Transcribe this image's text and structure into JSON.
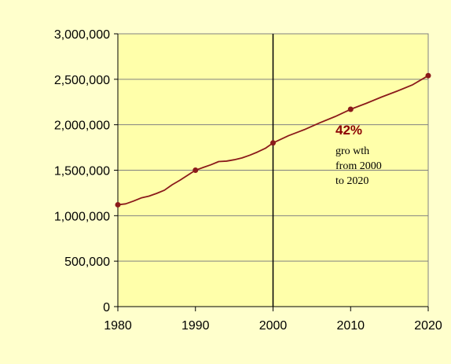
{
  "chart_data": {
    "type": "line",
    "title": "",
    "xlabel": "",
    "ylabel": "",
    "xlim": [
      1980,
      2020
    ],
    "ylim": [
      0,
      3000000
    ],
    "x_ticks": [
      "1980",
      "1990",
      "2000",
      "2010",
      "2020"
    ],
    "y_ticks": [
      "0",
      "500,000",
      "1,000,000",
      "1,500,000",
      "2,000,000",
      "2,500,000",
      "3,000,000"
    ],
    "grid": "horizontal",
    "series": [
      {
        "x": [
          1980,
          1981,
          1982,
          1983,
          1984,
          1985,
          1986,
          1987,
          1988,
          1989,
          1990,
          1991,
          1992,
          1993,
          1994,
          1995,
          1996,
          1997,
          1998,
          1999,
          2000,
          2002,
          2004,
          2006,
          2008,
          2010,
          2012,
          2014,
          2016,
          2018,
          2020
        ],
        "values": [
          1120000,
          1130000,
          1160000,
          1195000,
          1215000,
          1245000,
          1280000,
          1340000,
          1390000,
          1445000,
          1500000,
          1530000,
          1560000,
          1595000,
          1600000,
          1615000,
          1635000,
          1665000,
          1700000,
          1740000,
          1800000,
          1880000,
          1945000,
          2020000,
          2090000,
          2170000,
          2235000,
          2305000,
          2370000,
          2440000,
          2540000
        ],
        "color": "#8B1A1A"
      }
    ],
    "markers": {
      "x": [
        1980,
        1990,
        2000,
        2010,
        2020
      ],
      "values": [
        1120000,
        1500000,
        1800000,
        2170000,
        2540000
      ]
    },
    "reference_line_x": 2000,
    "annotation": {
      "percent": "42%",
      "lines": [
        "gro wth",
        "from 2000",
        "to 2020"
      ]
    },
    "plot_background": "#FFFFAA",
    "page_background": "#FFFFCC"
  }
}
